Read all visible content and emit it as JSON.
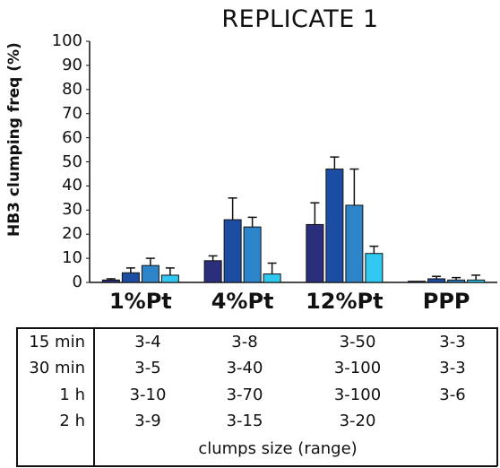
{
  "chart_data": {
    "type": "bar",
    "title": "REPLICATE 1",
    "ylabel": "HB3 clumping freq (%)",
    "ylim": [
      0,
      100
    ],
    "yticks": [
      0,
      10,
      20,
      30,
      40,
      50,
      60,
      70,
      80,
      90,
      100
    ],
    "categories": [
      "1%Pt",
      "4%Pt",
      "12%Pt",
      "PPP"
    ],
    "series": [
      {
        "color": "#2b2e7a",
        "values": [
          1,
          9,
          24,
          0.5
        ],
        "errors": [
          0.5,
          2,
          9,
          0
        ]
      },
      {
        "color": "#1b4ea2",
        "values": [
          4,
          26,
          47,
          1.5
        ],
        "errors": [
          2,
          9,
          5,
          1
        ]
      },
      {
        "color": "#2e84c8",
        "values": [
          7,
          23,
          32,
          1
        ],
        "errors": [
          3,
          4,
          15,
          1
        ]
      },
      {
        "color": "#30c8f0",
        "values": [
          3,
          3.5,
          12,
          1
        ],
        "errors": [
          3,
          4.5,
          3,
          2
        ]
      }
    ],
    "grid": false,
    "legend": "none"
  },
  "table": {
    "row_labels": [
      "15 min",
      "30 min",
      "1 h",
      "2 h"
    ],
    "rows": [
      [
        "3-4",
        "3-8",
        "3-50",
        "3-3"
      ],
      [
        "3-5",
        "3-40",
        "3-100",
        "3-3"
      ],
      [
        "3-10",
        "3-70",
        "3-100",
        "3-6"
      ],
      [
        "3-9",
        "3-15",
        "3-20",
        ""
      ]
    ],
    "footer": "clumps size (range)"
  }
}
